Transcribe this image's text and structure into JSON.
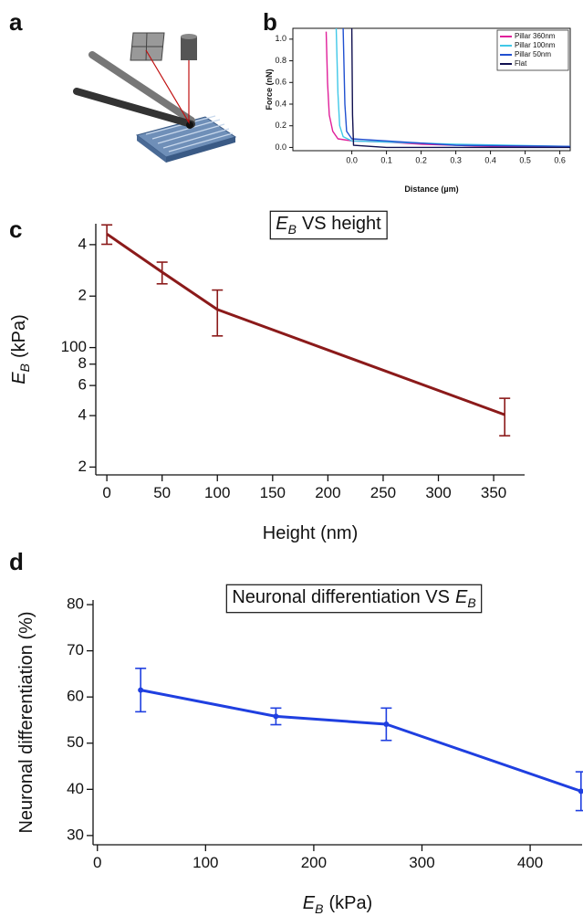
{
  "illustration_panel": "a",
  "chart_data": [
    {
      "type": "line",
      "panel": "b",
      "xlabel_parts": [
        {
          "text": "Distance (µm)"
        }
      ],
      "ylabel_parts": [
        {
          "text": "Force (nN)"
        }
      ],
      "xlim": [
        -0.17,
        0.63
      ],
      "ylim": [
        -0.03,
        1.1
      ],
      "xticks": [
        {
          "value": 0,
          "label": "0.0"
        },
        0.1,
        0.2,
        0.3,
        0.4,
        0.5,
        0.6
      ],
      "yticks": [
        {
          "value": 0,
          "label": "0.0"
        },
        0.2,
        0.4,
        0.6,
        0.8,
        {
          "value": 1,
          "label": "1.0"
        }
      ],
      "frame": true,
      "legend": "upper right",
      "series": [
        {
          "name": "Pillar 360nm",
          "color": "#e0209a",
          "x": [
            -0.074,
            -0.07,
            -0.065,
            -0.055,
            -0.04,
            0,
            0.1,
            0.2,
            0.3,
            0.4,
            0.5,
            0.63
          ],
          "values": [
            1.07,
            0.6,
            0.3,
            0.15,
            0.08,
            0.06,
            0.05,
            0.03,
            0.02,
            0.01,
            0.01,
            0.01
          ]
        },
        {
          "name": "Pillar 100nm",
          "color": "#40c8e8",
          "x": [
            -0.045,
            -0.04,
            -0.035,
            -0.025,
            0,
            0.1,
            0.3,
            0.63
          ],
          "values": [
            1.1,
            0.5,
            0.2,
            0.1,
            0.06,
            0.05,
            0.03,
            0.01
          ]
        },
        {
          "name": "Pillar 50nm",
          "color": "#2050d0",
          "x": [
            -0.025,
            -0.02,
            -0.015,
            0,
            0.1,
            0.3,
            0.63
          ],
          "values": [
            1.1,
            0.4,
            0.15,
            0.08,
            0.06,
            0.02,
            0.01
          ]
        },
        {
          "name": "Flat",
          "color": "#101050",
          "x": [
            0,
            0.002,
            0.005,
            0.1,
            0.63
          ],
          "values": [
            1.1,
            0.3,
            0.02,
            0,
            0
          ]
        }
      ]
    },
    {
      "type": "line",
      "panel": "c",
      "title_parts": [
        {
          "text": "E",
          "italic": true
        },
        {
          "text": "B",
          "italic": true,
          "sub": true
        },
        {
          "text": "VS height"
        }
      ],
      "xlabel_parts": [
        {
          "text": "Height (nm)"
        }
      ],
      "ylabel_parts": [
        {
          "text": "E",
          "italic": true
        },
        {
          "text": "B",
          "italic": true,
          "sub": true
        },
        {
          "text": "(kPa)"
        }
      ],
      "log_y": true,
      "xlim": [
        -10,
        378
      ],
      "ylim": [
        18,
        530
      ],
      "xticks": [
        0,
        50,
        100,
        150,
        200,
        250,
        300,
        350
      ],
      "yticks": [
        {
          "value": 400,
          "label": "4"
        },
        {
          "value": 200,
          "label": "2"
        },
        100,
        {
          "value": 80,
          "label": "8"
        },
        {
          "value": 60,
          "label": "6"
        },
        {
          "value": 40,
          "label": "4"
        },
        {
          "value": 20,
          "label": "2"
        }
      ],
      "x": [
        0,
        50,
        100,
        360
      ],
      "series": [
        {
          "color": "#8b1a1a",
          "values": [
            462,
            276,
            167,
            40.5
          ],
          "errors": [
            60,
            40,
            50,
            10
          ]
        }
      ]
    },
    {
      "type": "line",
      "panel": "d",
      "title_parts": [
        {
          "text": "Neuronal differentiation VS"
        },
        {
          "text": "E",
          "italic": true
        },
        {
          "text": "B",
          "italic": true,
          "sub": true
        }
      ],
      "xlabel_parts": [
        {
          "text": "E",
          "italic": true
        },
        {
          "text": "B",
          "italic": true,
          "sub": true
        },
        {
          "text": "(kPa)"
        }
      ],
      "ylabel_parts": [
        {
          "text": "Neuronal differentiation (%)"
        }
      ],
      "xlim": [
        -4,
        448
      ],
      "ylim": [
        28,
        81
      ],
      "xticks": [
        0,
        100,
        200,
        300,
        400
      ],
      "yticks": [
        30,
        40,
        50,
        60,
        70,
        80
      ],
      "x": [
        40,
        165,
        267,
        447
      ],
      "markers": true,
      "series": [
        {
          "color": "#1f3fe0",
          "values": [
            61.5,
            55.8,
            54.1,
            39.6
          ],
          "errors": [
            4.7,
            1.8,
            3.5,
            4.2
          ]
        }
      ]
    }
  ]
}
